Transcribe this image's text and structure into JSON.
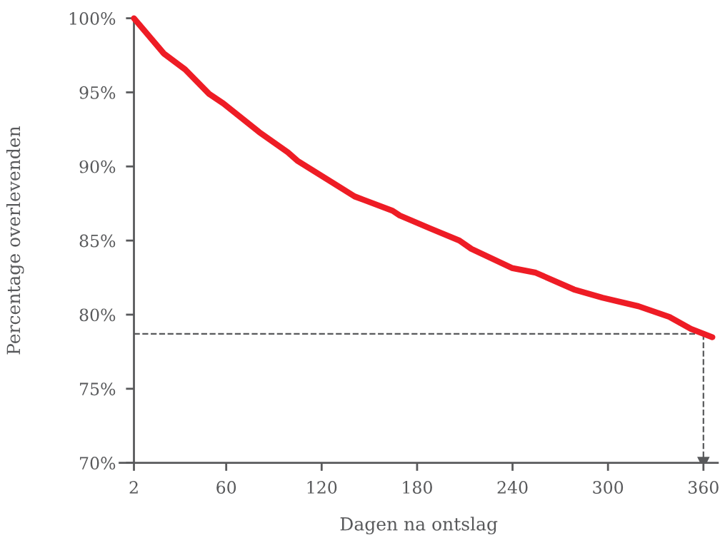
{
  "chart_data": {
    "type": "line",
    "xlabel": "Dagen na ontslag",
    "ylabel": "Percentage overlevenden",
    "x": [
      2,
      20.7,
      34.2,
      49.2,
      58.2,
      80.7,
      98.7,
      104.7,
      140.7,
      164.6,
      169.1,
      188.6,
      206.6,
      214.1,
      239.6,
      254.6,
      278.6,
      296.6,
      319.1,
      338.6,
      352.1,
      365.6
    ],
    "series": [
      {
        "color": "#ee1c25",
        "values": [
          100,
          97.63,
          96.54,
          94.9,
          94.25,
          92.32,
          90.96,
          90.39,
          87.98,
          87.01,
          86.69,
          85.8,
          85.0,
          84.44,
          83.15,
          82.83,
          81.7,
          81.14,
          80.57,
          79.85,
          79.04,
          78.48
        ]
      }
    ],
    "xlim": [
      -7,
      369
    ],
    "ylim": [
      70,
      100
    ],
    "xticks": [
      2,
      60,
      120,
      180,
      240,
      300,
      360
    ],
    "yticks": [
      {
        "value": 70,
        "label": "70%"
      },
      {
        "value": 75,
        "label": "75%"
      },
      {
        "value": 80,
        "label": "80%"
      },
      {
        "value": 85,
        "label": "85%"
      },
      {
        "value": 90,
        "label": "90%"
      },
      {
        "value": 95,
        "label": "95%"
      },
      {
        "value": 100,
        "label": "100%"
      }
    ],
    "ref_lines": [
      {
        "axis": "y",
        "value": 78.7,
        "color": "#58595b",
        "line_style": "dashed"
      },
      {
        "axis": "x",
        "value": 360,
        "color": "#58595b",
        "line_style": "dashed"
      }
    ],
    "grid": false,
    "legend": false,
    "marker": "none",
    "line_style": "solid"
  }
}
